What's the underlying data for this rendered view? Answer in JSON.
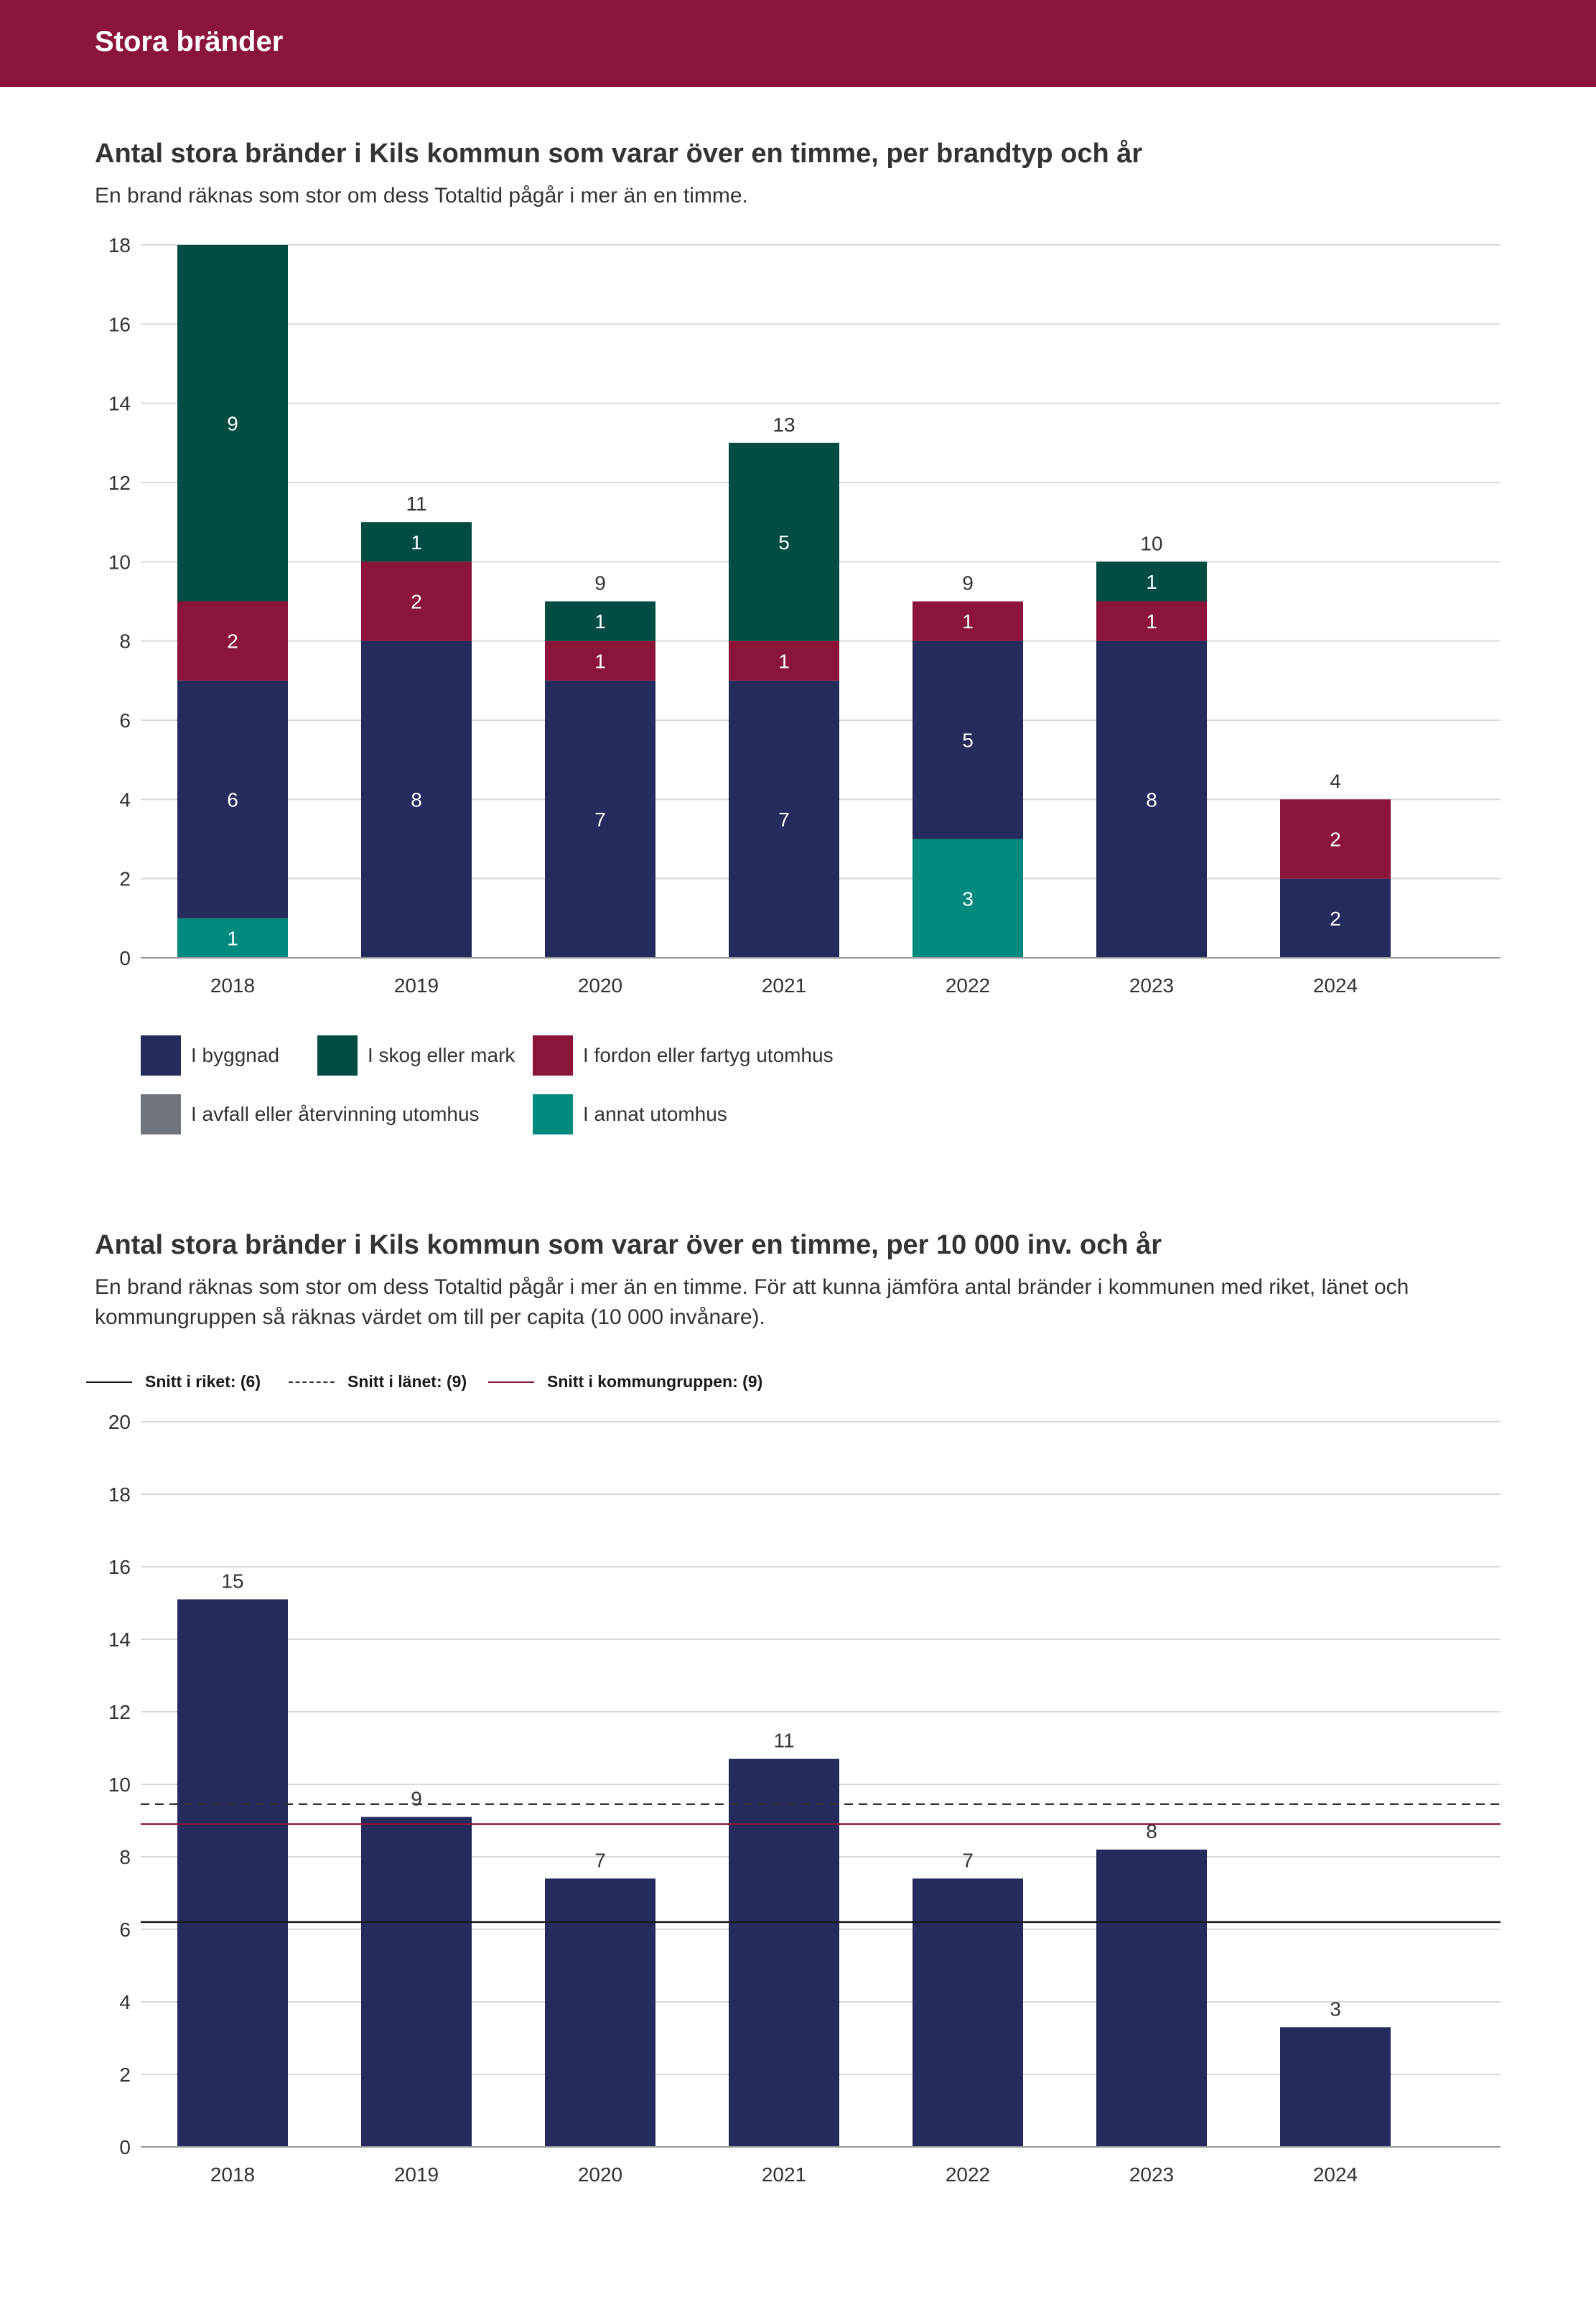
{
  "header": {
    "title": "Stora bränder"
  },
  "charts": [
    {
      "title": "Antal stora bränder i Kils kommun som varar över en timme, per brandtyp och år",
      "subtitle": "En brand räknas som stor om dess Totaltid pågår i mer än en timme."
    },
    {
      "title": "Antal stora bränder i Kils kommun som varar över en timme, per 10 000 inv. och år",
      "subtitle": "En brand räknas som stor om dess Totaltid pågår i mer än en timme. För att kunna jämföra antal bränder i kommunen med riket, länet och kommungruppen så räknas värdet om till per capita (10 000 invånare)."
    }
  ],
  "colors": {
    "header": "#8a1538",
    "byggnad": "#252b5c",
    "skog": "#014c43",
    "fordon": "#8a1538",
    "avfall": "#6e737c",
    "annat": "#008a7f",
    "grid": "#d9d9d9",
    "axis": "#999999"
  },
  "legend": [
    {
      "label": "I byggnad",
      "color": "#252b5c",
      "icon": "square-swatch"
    },
    {
      "label": "I skog eller mark",
      "color": "#014c43",
      "icon": "square-swatch"
    },
    {
      "label": "I fordon eller fartyg utomhus",
      "color": "#8a1538",
      "icon": "square-swatch"
    },
    {
      "label": "I avfall eller återvinning utomhus",
      "color": "#6e737c",
      "icon": "square-swatch"
    },
    {
      "label": "I annat utomhus",
      "color": "#008a7f",
      "icon": "square-swatch"
    }
  ],
  "reference_lines": [
    {
      "label": "Snitt i riket: (6)",
      "value": 6.2,
      "color": "#1a1a1a",
      "style": "solid"
    },
    {
      "label": "Snitt i länet: (9)",
      "value": 9.45,
      "color": "#333333",
      "style": "dashed"
    },
    {
      "label": "Snitt i kommungruppen: (9)",
      "value": 8.9,
      "color": "#8a1538",
      "style": "solid"
    }
  ],
  "chart_data": [
    {
      "type": "bar",
      "stacked": true,
      "title": "Antal stora bränder i Kils kommun som varar över en timme, per brandtyp och år",
      "categories": [
        "2018",
        "2019",
        "2020",
        "2021",
        "2022",
        "2023",
        "2024"
      ],
      "series": [
        {
          "name": "I annat utomhus",
          "color": "#008a7f",
          "values": [
            1,
            0,
            0,
            0,
            3,
            0,
            0
          ]
        },
        {
          "name": "I byggnad",
          "color": "#252b5c",
          "values": [
            6,
            8,
            7,
            7,
            5,
            8,
            2
          ]
        },
        {
          "name": "I fordon eller fartyg utomhus",
          "color": "#8a1538",
          "values": [
            2,
            2,
            1,
            1,
            1,
            1,
            2
          ]
        },
        {
          "name": "I skog eller mark",
          "color": "#014c43",
          "values": [
            9,
            1,
            1,
            5,
            0,
            1,
            0
          ]
        },
        {
          "name": "I avfall eller återvinning utomhus",
          "color": "#6e737c",
          "values": [
            0,
            0,
            0,
            0,
            0,
            0,
            0
          ]
        }
      ],
      "totals": [
        "",
        "11",
        "9",
        "13",
        "9",
        "10",
        "4"
      ],
      "yticks": [
        "0",
        "2",
        "4",
        "6",
        "8",
        "10",
        "12",
        "14",
        "16",
        "18"
      ],
      "ylim": [
        0,
        18
      ],
      "xlabel": "",
      "ylabel": "",
      "grid": true
    },
    {
      "type": "bar",
      "title": "Antal stora bränder i Kils kommun som varar över en timme, per 10 000 inv. och år",
      "categories": [
        "2018",
        "2019",
        "2020",
        "2021",
        "2022",
        "2023",
        "2024"
      ],
      "values": [
        15.1,
        9.1,
        7.4,
        10.7,
        7.4,
        8.2,
        3.3
      ],
      "value_labels": [
        "15",
        "9",
        "7",
        "11",
        "7",
        "8",
        "3"
      ],
      "yticks": [
        "0",
        "2",
        "4",
        "6",
        "8",
        "10",
        "12",
        "14",
        "16",
        "18",
        "20"
      ],
      "ylim": [
        0,
        20
      ],
      "xlabel": "",
      "ylabel": "",
      "grid": true,
      "bar_color": "#252b5c"
    }
  ]
}
